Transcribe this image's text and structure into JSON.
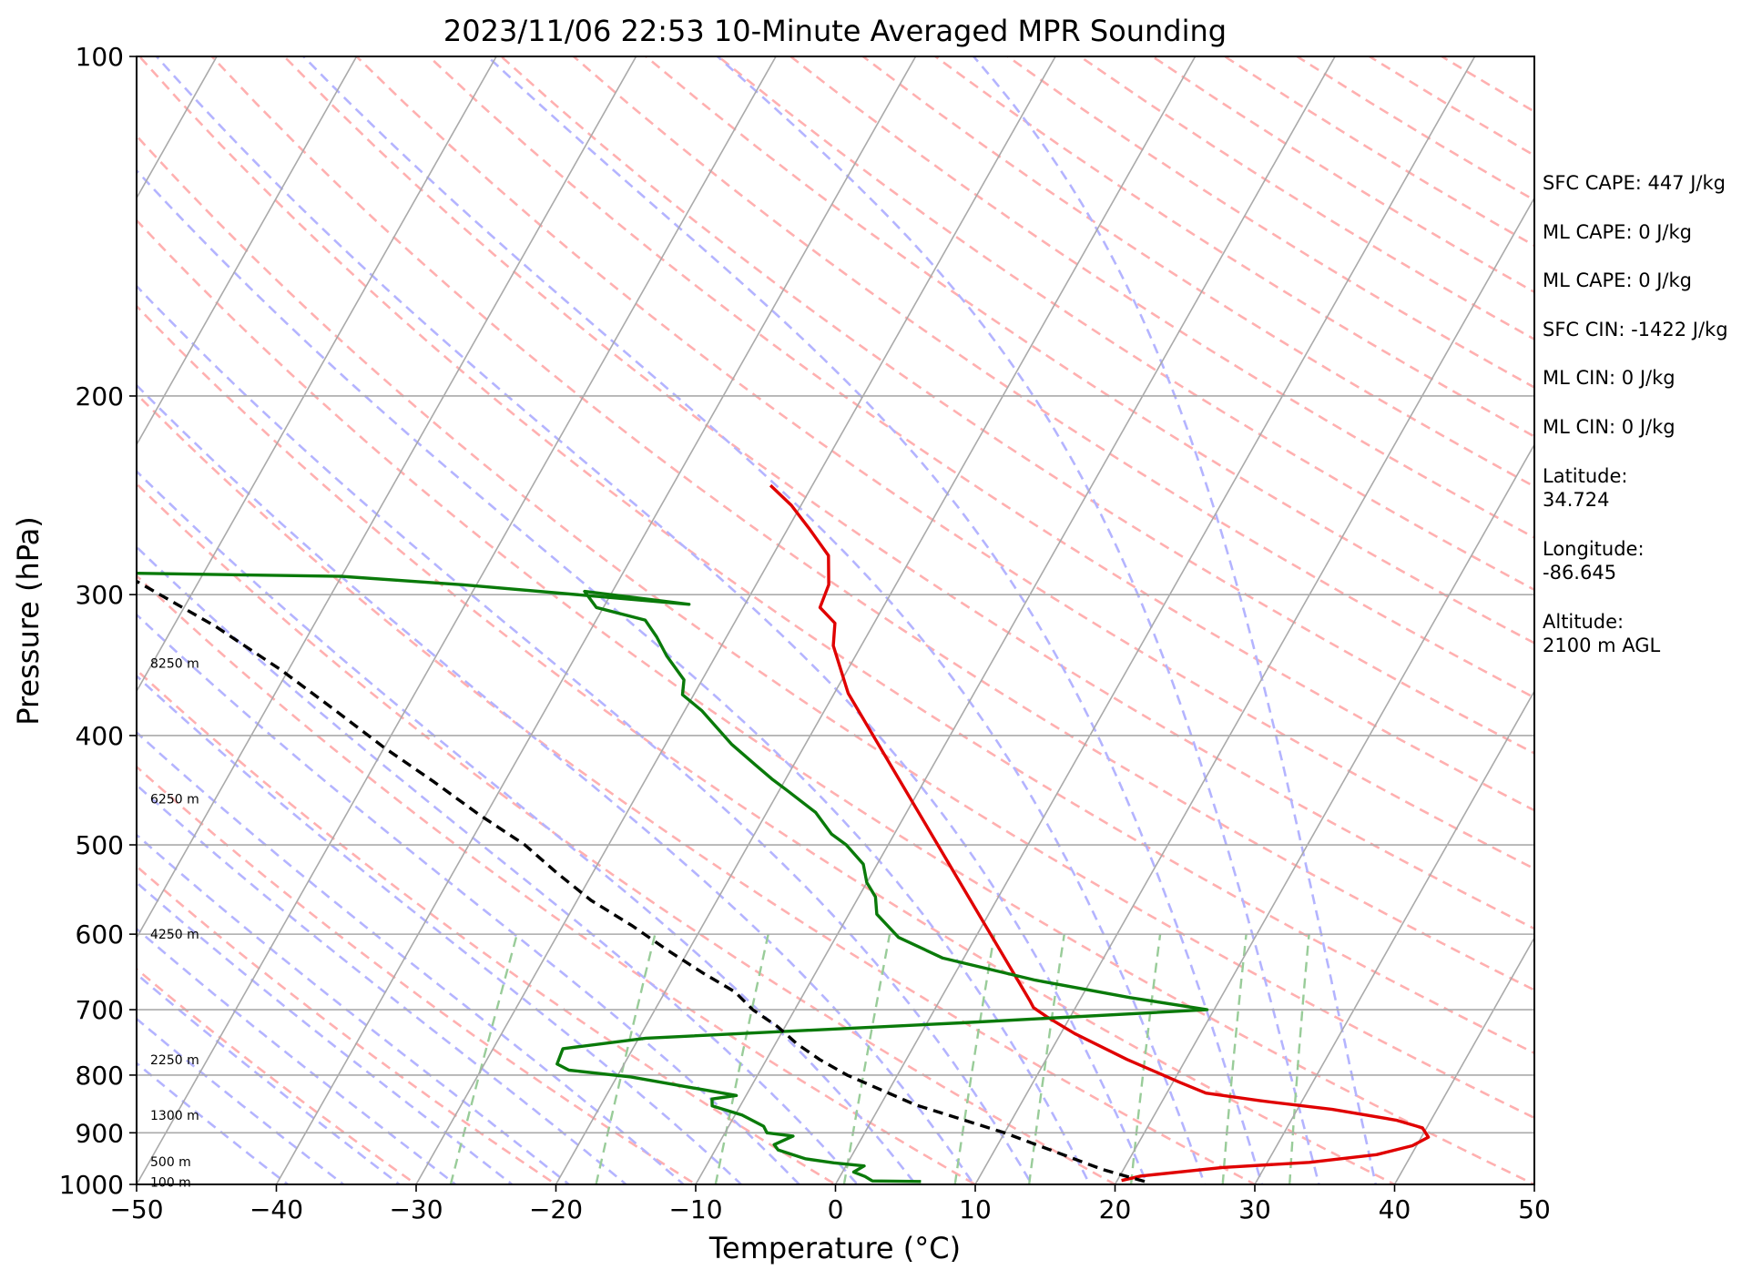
{
  "chart_data": {
    "type": "line",
    "title": "2023/11/06 22:53 10-Minute Averaged MPR Sounding",
    "xlabel": "Temperature (°C)",
    "ylabel": "Pressure (hPa)",
    "xlim": [
      -50,
      50
    ],
    "ylim": [
      1000,
      100
    ],
    "y_scale": "log",
    "skew_t": true,
    "x_ticks": [
      "−50",
      "−40",
      "−30",
      "−20",
      "−10",
      "0",
      "10",
      "20",
      "30",
      "40",
      "50"
    ],
    "y_ticks": [
      "100",
      "200",
      "300",
      "400",
      "500",
      "600",
      "700",
      "800",
      "900",
      "1000"
    ],
    "height_labels": [
      {
        "text": "8250 m",
        "p": 345
      },
      {
        "text": "6250 m",
        "p": 455
      },
      {
        "text": "4250 m",
        "p": 600
      },
      {
        "text": "2250 m",
        "p": 775
      },
      {
        "text": "1300 m",
        "p": 868
      },
      {
        "text": "500 m",
        "p": 955
      },
      {
        "text": "100 m",
        "p": 995
      }
    ],
    "series": [
      {
        "name": "",
        "color": "#e00000",
        "points": [
          [
            20.3,
            992
          ],
          [
            21.5,
            983
          ],
          [
            27,
            966
          ],
          [
            33,
            956
          ],
          [
            37.5,
            941
          ],
          [
            39.7,
            924
          ],
          [
            40.5,
            908
          ],
          [
            39.7,
            891
          ],
          [
            37.5,
            877
          ],
          [
            32.5,
            858
          ],
          [
            27,
            843
          ],
          [
            22.8,
            830
          ],
          [
            20.5,
            812
          ],
          [
            15.8,
            775
          ],
          [
            11,
            735
          ],
          [
            8.3,
            710
          ],
          [
            7,
            697
          ],
          [
            6.5,
            688
          ],
          [
            -19,
            367
          ],
          [
            -22,
            333
          ],
          [
            -22.8,
            318
          ],
          [
            -24.5,
            308
          ],
          [
            -24.8,
            294
          ],
          [
            -26,
            277
          ],
          [
            -28.5,
            262
          ],
          [
            -30.7,
            250
          ],
          [
            -33,
            240
          ]
        ]
      },
      {
        "name": "",
        "color": "#0a7a0a",
        "points": [
          [
            6,
            994
          ],
          [
            2.5,
            993
          ],
          [
            1.8,
            984
          ],
          [
            0.8,
            975
          ],
          [
            1.3,
            963
          ],
          [
            -1,
            957
          ],
          [
            -3.2,
            949
          ],
          [
            -5.5,
            932
          ],
          [
            -6,
            922
          ],
          [
            -5,
            906
          ],
          [
            -7,
            900
          ],
          [
            -7.5,
            888
          ],
          [
            -9.5,
            868
          ],
          [
            -12,
            852
          ],
          [
            -12.3,
            840
          ],
          [
            -10.7,
            834
          ],
          [
            -15.5,
            816
          ],
          [
            -19,
            803
          ],
          [
            -23.7,
            792
          ],
          [
            -24.8,
            782
          ],
          [
            -25,
            758
          ],
          [
            -19.5,
            742
          ],
          [
            2.5,
            719
          ],
          [
            19.5,
            700
          ],
          [
            13.5,
            683
          ],
          [
            6,
            659
          ],
          [
            -1.5,
            630
          ],
          [
            -5.5,
            604
          ],
          [
            -8,
            576
          ],
          [
            -8.8,
            556
          ],
          [
            -10,
            540
          ],
          [
            -11,
            520
          ],
          [
            -13,
            500
          ],
          [
            -14.5,
            489
          ],
          [
            -16.5,
            468
          ],
          [
            -19.5,
            447
          ],
          [
            -21,
            437
          ],
          [
            -22.7,
            425
          ],
          [
            -25.3,
            407
          ],
          [
            -28.8,
            380
          ],
          [
            -30.8,
            368
          ],
          [
            -31.3,
            357
          ],
          [
            -33.5,
            340
          ],
          [
            -35,
            327
          ],
          [
            -36.5,
            316
          ],
          [
            -40.5,
            308
          ],
          [
            -42,
            298
          ],
          [
            -34,
            306
          ],
          [
            -51,
            294
          ],
          [
            -60,
            289
          ],
          [
            -85,
            286
          ]
        ]
      },
      {
        "name": "",
        "color": "#000000",
        "dashed": true,
        "points": [
          [
            22,
            994
          ],
          [
            18.5,
            970
          ],
          [
            10,
            900
          ],
          [
            2.5,
            850
          ],
          [
            -3.6,
            800
          ],
          [
            -6.2,
            775
          ],
          [
            -8.5,
            750
          ],
          [
            -10.5,
            725
          ],
          [
            -13,
            700
          ],
          [
            -15,
            675
          ],
          [
            -18,
            650
          ],
          [
            -21.5,
            620
          ],
          [
            -25,
            590
          ],
          [
            -29,
            560
          ],
          [
            -32.5,
            530
          ],
          [
            -36,
            500
          ],
          [
            -40.5,
            470
          ],
          [
            -45,
            440
          ],
          [
            -50,
            410
          ],
          [
            -55,
            380
          ],
          [
            -60.5,
            350
          ],
          [
            -67,
            320
          ],
          [
            -75,
            290
          ],
          [
            -80,
            262
          ]
        ]
      }
    ],
    "annotations": [
      "SFC CAPE: 447 J/kg",
      "ML CAPE: 0 J/kg",
      "ML CAPE: 0 J/kg",
      "SFC CIN: -1422 J/kg",
      "ML CIN: 0 J/kg",
      "ML CIN: 0 J/kg"
    ],
    "location": {
      "latitude_label": "Latitude:",
      "latitude": "34.724",
      "longitude_label": "Longitude:",
      "longitude": "-86.645",
      "altitude_label": "Altitude:",
      "altitude": "2100 m AGL"
    },
    "background": {
      "isotherm_color": "#aaaaaa",
      "dry_adiabat_color": "#ffb0b0",
      "moist_adiabat_color": "#b4b4ff",
      "mixing_ratio_color": "#99cc99",
      "isobar_color": "#aaaaaa"
    },
    "grid": true
  }
}
